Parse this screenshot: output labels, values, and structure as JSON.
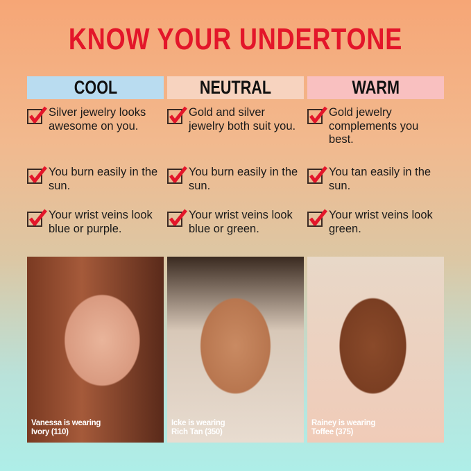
{
  "title": "KNOW YOUR UNDERTONE",
  "columns": [
    {
      "label": "COOL",
      "color": "#b9dcf0",
      "items": [
        "Silver jewelry looks awesome on you.",
        "You burn easily in the sun.",
        "Your wrist veins look blue or purple."
      ],
      "caption_line1": "Vanessa is wearing",
      "caption_line2": "Ivory (110)"
    },
    {
      "label": "NEUTRAL",
      "color": "#f7d3bf",
      "items": [
        "Gold and silver jewelry both suit you.",
        "You burn easily in the sun.",
        "Your wrist veins look blue or green."
      ],
      "caption_line1": "Icke is wearing",
      "caption_line2": "Rich Tan (350)"
    },
    {
      "label": "WARM",
      "color": "#f9c0c0",
      "items": [
        "Gold jewelry complements you best.",
        "You tan easily in the sun.",
        "Your wrist veins look green."
      ],
      "caption_line1": "Rainey is wearing",
      "caption_line2": "Toffee (375)"
    }
  ],
  "icons": {
    "check": "checkbox-checked-icon",
    "check_color": "#e3162a"
  }
}
